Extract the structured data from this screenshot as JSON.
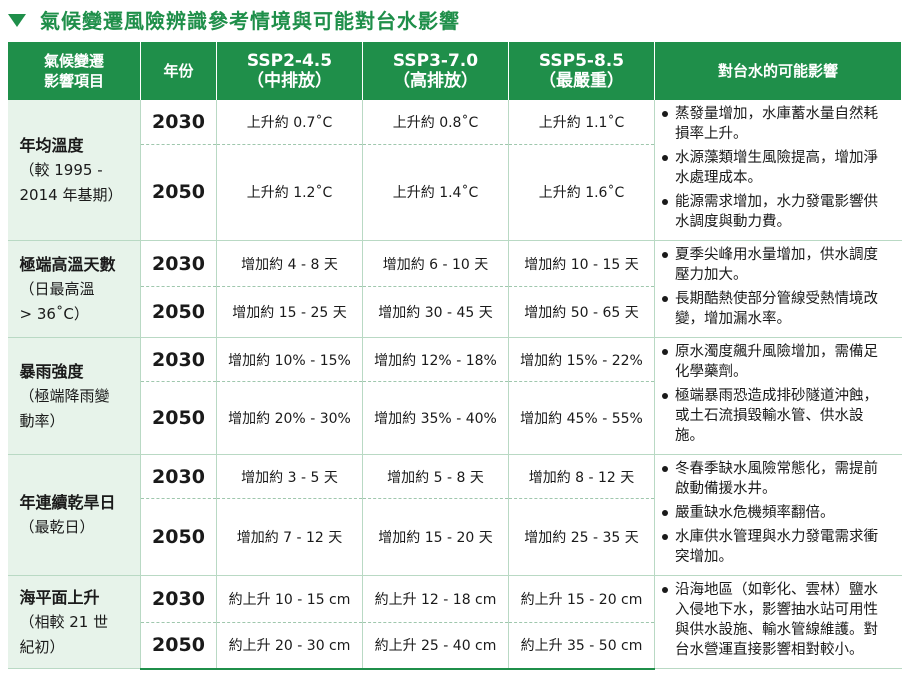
{
  "title": "氣候變遷風險辨識參考情境與可能對台水影響",
  "colors": {
    "accent": "#1f8f4a",
    "item_bg": "#e7f3ea"
  },
  "headers": {
    "item": [
      "氣候變遷",
      "影響項目"
    ],
    "year": "年份",
    "ssp245": [
      "SSP2-4.5",
      "（中排放）"
    ],
    "ssp370": [
      "SSP3-7.0",
      "（高排放）"
    ],
    "ssp585": [
      "SSP5-8.5",
      "（最嚴重）"
    ],
    "impact": "對台水的可能影響"
  },
  "rows": [
    {
      "item": [
        "年均溫度",
        "（較 1995 -",
        "2014 年基期）"
      ],
      "y1": {
        "year": "2030",
        "ssp245": "上升約 0.7˚C",
        "ssp370": "上升約 0.8˚C",
        "ssp585": "上升約 1.1˚C"
      },
      "y2": {
        "year": "2050",
        "ssp245": "上升約 1.2˚C",
        "ssp370": "上升約 1.4˚C",
        "ssp585": "上升約 1.6˚C"
      },
      "impacts": [
        "蒸發量增加，水庫蓄水量自然耗損率上升。",
        "水源藻類增生風險提高，增加淨水處理成本。",
        "能源需求增加，水力發電影響供水調度與動力費。"
      ]
    },
    {
      "item": [
        "極端高溫天數",
        "（日最高溫",
        "> 36˚C）"
      ],
      "y1": {
        "year": "2030",
        "ssp245": "增加約 4 - 8 天",
        "ssp370": "增加約 6 - 10 天",
        "ssp585": "增加約 10 - 15 天"
      },
      "y2": {
        "year": "2050",
        "ssp245": "增加約 15 - 25 天",
        "ssp370": "增加約 30 - 45 天",
        "ssp585": "增加約 50 - 65 天"
      },
      "impacts": [
        "夏季尖峰用水量增加，供水調度壓力加大。",
        "長期酷熱使部分管線受熱情境改變，增加漏水率。"
      ]
    },
    {
      "item": [
        "暴雨強度",
        "（極端降雨變",
        "動率）"
      ],
      "y1": {
        "year": "2030",
        "ssp245": "增加約 10% - 15%",
        "ssp370": "增加約 12% - 18%",
        "ssp585": "增加約 15% - 22%"
      },
      "y2": {
        "year": "2050",
        "ssp245": "增加約 20% - 30%",
        "ssp370": "增加約 35% - 40%",
        "ssp585": "增加約 45% - 55%"
      },
      "impacts": [
        "原水濁度飆升風險增加，需備足化學藥劑。",
        "極端暴雨恐造成排砂隧道沖蝕，或土石流損毀輸水管、供水設施。"
      ]
    },
    {
      "item": [
        "年連續乾旱日",
        "（最乾日）"
      ],
      "y1": {
        "year": "2030",
        "ssp245": "增加約 3 - 5 天",
        "ssp370": "增加約 5 - 8 天",
        "ssp585": "增加約 8 - 12 天"
      },
      "y2": {
        "year": "2050",
        "ssp245": "增加約 7 - 12 天",
        "ssp370": "增加約 15 - 20 天",
        "ssp585": "增加約 25 - 35 天"
      },
      "impacts": [
        "冬春季缺水風險常態化，需提前啟動備援水井。",
        "嚴重缺水危機頻率翻倍。",
        "水庫供水管理與水力發電需求衝突增加。"
      ]
    },
    {
      "item": [
        "海平面上升",
        "（相較 21 世",
        "紀初）"
      ],
      "y1": {
        "year": "2030",
        "ssp245": "約上升 10 - 15 cm",
        "ssp370": "約上升 12 - 18 cm",
        "ssp585": "約上升 15 - 20 cm"
      },
      "y2": {
        "year": "2050",
        "ssp245": "約上升 20 - 30 cm",
        "ssp370": "約上升 25 - 40 cm",
        "ssp585": "約上升 35 - 50 cm"
      },
      "impacts": [
        "沿海地區（如彰化、雲林）鹽水入侵地下水，影響抽水站可用性與供水設施、輸水管線維護。對台水營運直接影響相對較小。"
      ]
    }
  ]
}
